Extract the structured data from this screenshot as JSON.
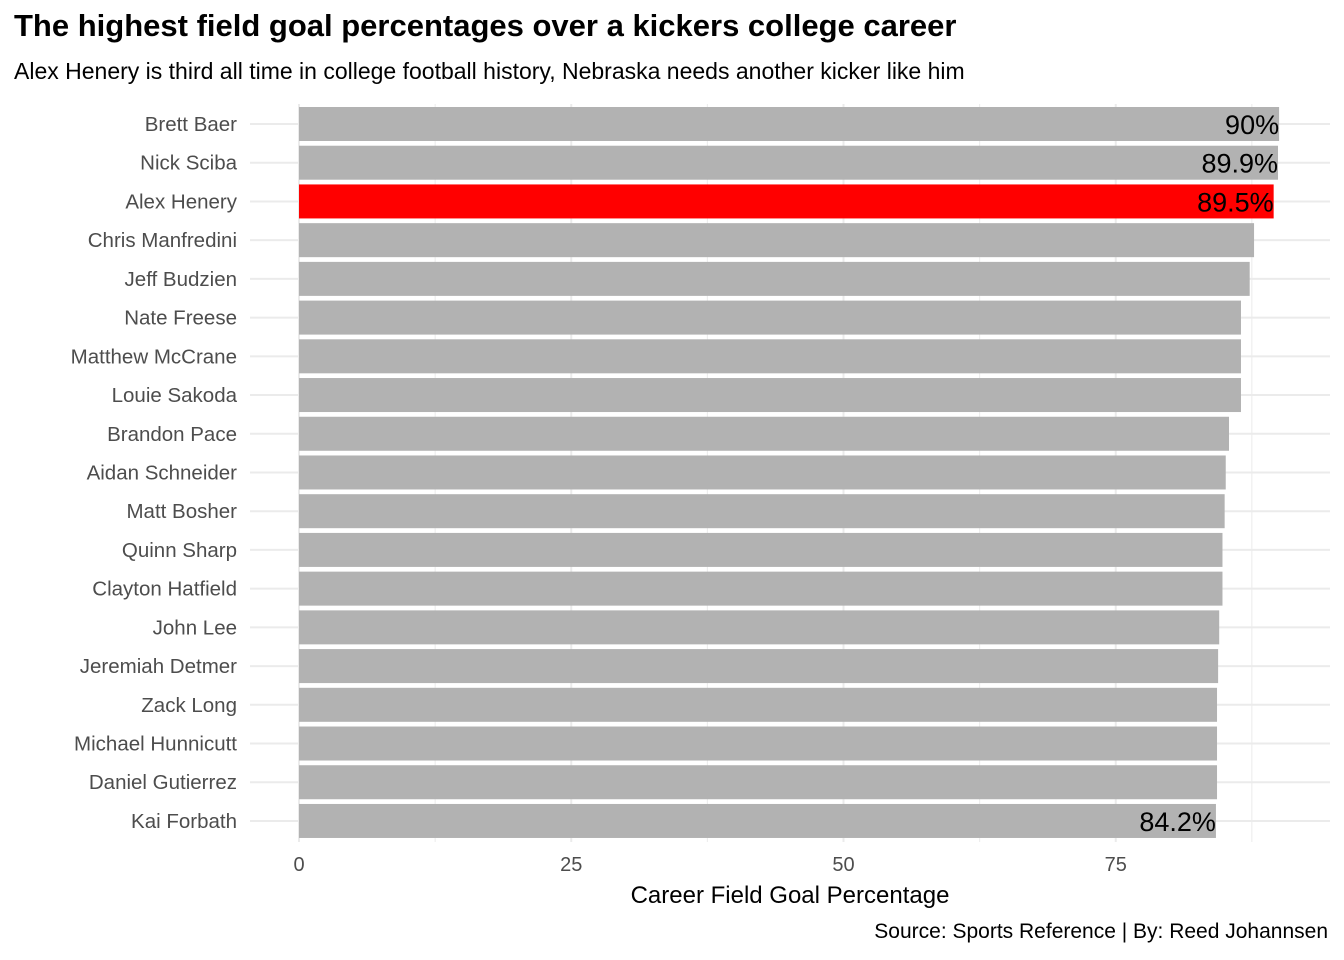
{
  "chart_data": {
    "type": "bar",
    "orientation": "horizontal",
    "title": "The highest field goal percentages over a kickers college career",
    "subtitle": "Alex Henery is third all time in college football history, Nebraska needs another kicker like him",
    "caption": "Source: Sports Reference | By: Reed Johannsen",
    "xlabel": "Career Field Goal Percentage",
    "ylabel": "",
    "xlim": [
      0,
      90
    ],
    "xticks": [
      0,
      25,
      50,
      75
    ],
    "grid": true,
    "categories": [
      "Brett Baer",
      "Nick Sciba",
      "Alex Henery",
      "Chris Manfredini",
      "Jeff Budzien",
      "Nate Freese",
      "Matthew McCrane",
      "Louie Sakoda",
      "Brandon Pace",
      "Aidan Schneider",
      "Matt Bosher",
      "Quinn Sharp",
      "Clayton Hatfield",
      "John Lee",
      "Jeremiah Detmer",
      "Zack Long",
      "Michael Hunnicutt",
      "Daniel Gutierrez",
      "Kai Forbath"
    ],
    "values": [
      90.0,
      89.9,
      89.5,
      87.7,
      87.3,
      86.5,
      86.5,
      86.5,
      85.4,
      85.1,
      85.0,
      84.8,
      84.8,
      84.5,
      84.4,
      84.3,
      84.3,
      84.3,
      84.2
    ],
    "data_labels": [
      "90%",
      "89.9%",
      "89.5%",
      "",
      "",
      "",
      "",
      "",
      "",
      "",
      "",
      "",
      "",
      "",
      "",
      "",
      "",
      "",
      "84.2%"
    ],
    "highlight": "Alex Henery",
    "colors": {
      "bar": "#b2b2b2",
      "highlight": "#ff0000",
      "grid": "#ebebeb",
      "text": "#000000",
      "axis_text": "#4d4d4d"
    }
  }
}
